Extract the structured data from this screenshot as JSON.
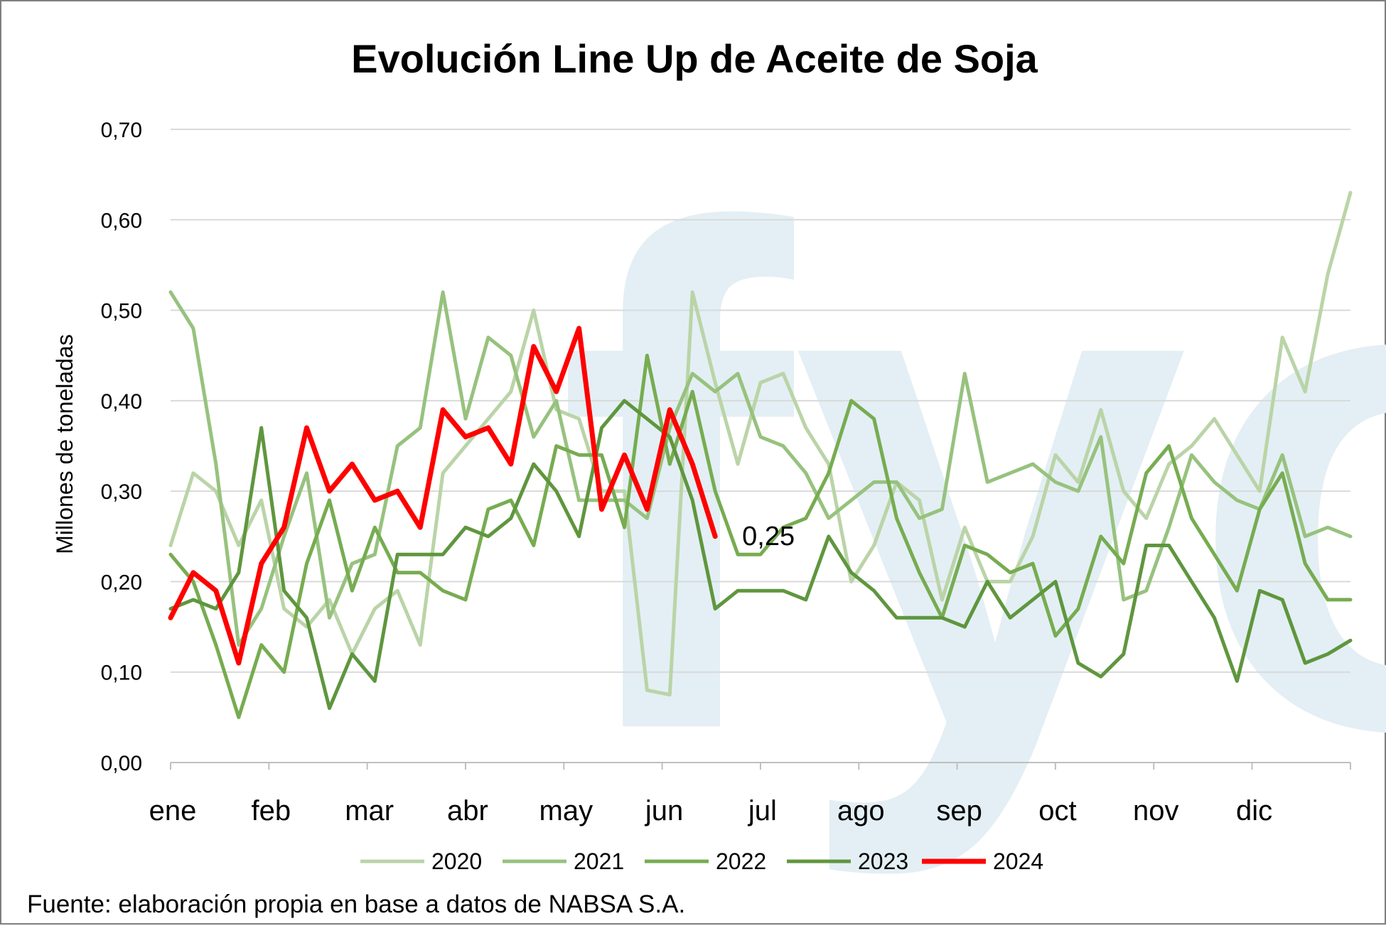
{
  "watermark": "fyo",
  "source": "Fuente: elaboración propia en base a datos de NABSA S.A.",
  "chart_data": {
    "type": "line",
    "title": "Evolución Line Up de Aceite de Soja",
    "xlabel": "",
    "ylabel": "Millones de toneladas",
    "ylim": [
      0,
      0.7
    ],
    "ytick_values": [
      0,
      0.1,
      0.2,
      0.3,
      0.4,
      0.5,
      0.6,
      0.7
    ],
    "ytick_labels": [
      "0,00",
      "0,10",
      "0,20",
      "0,30",
      "0,40",
      "0,50",
      "0,60",
      "0,70"
    ],
    "grid": true,
    "month_labels": [
      "ene",
      "feb",
      "mar",
      "abr",
      "may",
      "jun",
      "jul",
      "ago",
      "sep",
      "oct",
      "nov",
      "dic"
    ],
    "points_per_month": 4.333,
    "legend_position": "bottom",
    "annotation": {
      "text": "0,25",
      "series": "2024"
    },
    "series": [
      {
        "name": "2020",
        "color": "#bad4a7",
        "values": [
          0.24,
          0.32,
          0.3,
          0.24,
          0.29,
          0.17,
          0.15,
          0.18,
          0.12,
          0.17,
          0.19,
          0.13,
          0.32,
          0.35,
          0.38,
          0.41,
          0.5,
          0.39,
          0.38,
          0.3,
          0.3,
          0.08,
          0.075,
          0.52,
          0.42,
          0.33,
          0.42,
          0.43,
          0.37,
          0.33,
          0.2,
          0.24,
          0.31,
          0.29,
          0.18,
          0.26,
          0.2,
          0.2,
          0.25,
          0.34,
          0.31,
          0.39,
          0.3,
          0.27,
          0.33,
          0.35,
          0.38,
          0.34,
          0.3,
          0.47,
          0.41,
          0.54,
          0.63
        ]
      },
      {
        "name": "2021",
        "color": "#97c27e",
        "values": [
          0.52,
          0.48,
          0.33,
          0.13,
          0.17,
          0.25,
          0.32,
          0.16,
          0.22,
          0.23,
          0.35,
          0.37,
          0.52,
          0.38,
          0.47,
          0.45,
          0.36,
          0.4,
          0.29,
          0.29,
          0.29,
          0.27,
          0.37,
          0.43,
          0.41,
          0.43,
          0.36,
          0.35,
          0.32,
          0.27,
          0.29,
          0.31,
          0.31,
          0.27,
          0.28,
          0.43,
          0.31,
          0.32,
          0.33,
          0.31,
          0.3,
          0.36,
          0.18,
          0.19,
          0.26,
          0.34,
          0.31,
          0.29,
          0.28,
          0.34,
          0.25,
          0.26,
          0.25
        ]
      },
      {
        "name": "2022",
        "color": "#77ac51",
        "values": [
          0.23,
          0.2,
          0.13,
          0.05,
          0.13,
          0.1,
          0.22,
          0.29,
          0.19,
          0.26,
          0.21,
          0.21,
          0.19,
          0.18,
          0.28,
          0.29,
          0.24,
          0.35,
          0.34,
          0.34,
          0.26,
          0.45,
          0.33,
          0.41,
          0.3,
          0.23,
          0.23,
          0.26,
          0.27,
          0.32,
          0.4,
          0.38,
          0.27,
          0.21,
          0.16,
          0.24,
          0.23,
          0.21,
          0.22,
          0.14,
          0.17,
          0.25,
          0.22,
          0.32,
          0.35,
          0.27,
          0.23,
          0.19,
          0.28,
          0.32,
          0.22,
          0.18,
          0.18
        ]
      },
      {
        "name": "2023",
        "color": "#5f963e",
        "values": [
          0.17,
          0.18,
          0.17,
          0.21,
          0.37,
          0.19,
          0.16,
          0.06,
          0.12,
          0.09,
          0.23,
          0.23,
          0.23,
          0.26,
          0.25,
          0.27,
          0.33,
          0.3,
          0.25,
          0.37,
          0.4,
          0.38,
          0.36,
          0.29,
          0.17,
          0.19,
          0.19,
          0.19,
          0.18,
          0.25,
          0.21,
          0.19,
          0.16,
          0.16,
          0.16,
          0.15,
          0.2,
          0.16,
          0.18,
          0.2,
          0.11,
          0.095,
          0.12,
          0.24,
          0.24,
          0.2,
          0.16,
          0.09,
          0.19,
          0.18,
          0.11,
          0.12,
          0.135
        ]
      },
      {
        "name": "2024",
        "color": "#ff0000",
        "values": [
          0.16,
          0.21,
          0.19,
          0.11,
          0.22,
          0.26,
          0.37,
          0.3,
          0.33,
          0.29,
          0.3,
          0.26,
          0.39,
          0.36,
          0.37,
          0.33,
          0.46,
          0.41,
          0.48,
          0.28,
          0.34,
          0.28,
          0.39,
          0.33,
          0.25
        ]
      }
    ]
  }
}
